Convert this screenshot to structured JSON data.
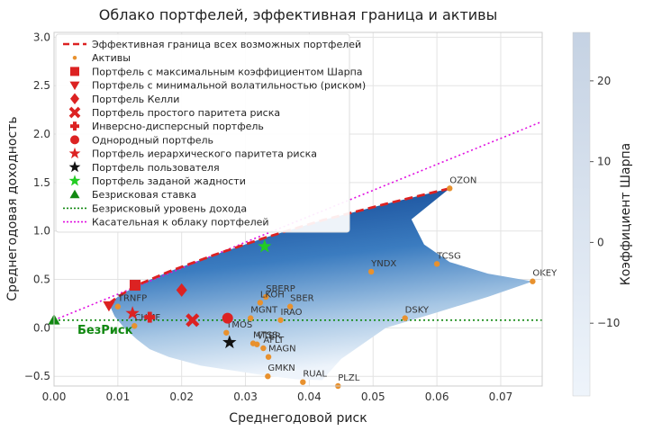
{
  "chart_data": {
    "type": "scatter",
    "title": "Облако портфелей, эффективная граница и активы",
    "xlabel": "Среднегодовой риск",
    "ylabel": "Среднегодовая доходность",
    "xlim": [
      0.0,
      0.0765
    ],
    "ylim": [
      -0.6,
      3.05
    ],
    "x_ticks": [
      0.0,
      0.01,
      0.02,
      0.03,
      0.04,
      0.05,
      0.06,
      0.07
    ],
    "y_ticks": [
      -0.5,
      0.0,
      0.5,
      1.0,
      1.5,
      2.0,
      2.5,
      3.0
    ],
    "x_tick_labels": [
      "0.00",
      "0.01",
      "0.02",
      "0.03",
      "0.04",
      "0.05",
      "0.06",
      "0.07"
    ],
    "y_tick_labels": [
      "−0.5",
      "0.0",
      "0.5",
      "1.0",
      "1.5",
      "2.0",
      "2.5",
      "3.0"
    ],
    "grid": true,
    "colorbar": {
      "label": "Коэффициент Шарпа",
      "ticks": [
        20,
        10,
        0,
        -10
      ],
      "tick_labels": [
        "20",
        "10",
        "0",
        "−10"
      ],
      "range": [
        -19,
        26
      ],
      "color_low": "#eef4fb",
      "color_high": "#c5d2e3"
    },
    "risk_free_rate": 0.08,
    "risk_free_label": "БезРиск",
    "assets": [
      {
        "name": "OZON",
        "x": 0.062,
        "y": 1.44
      },
      {
        "name": "OKEY",
        "x": 0.075,
        "y": 0.48
      },
      {
        "name": "TCSG",
        "x": 0.06,
        "y": 0.66
      },
      {
        "name": "YNDX",
        "x": 0.0497,
        "y": 0.58
      },
      {
        "name": "DSKY",
        "x": 0.055,
        "y": 0.1
      },
      {
        "name": "SBERP",
        "x": 0.0332,
        "y": 0.32
      },
      {
        "name": "LKOH",
        "x": 0.0323,
        "y": 0.26
      },
      {
        "name": "SBER",
        "x": 0.037,
        "y": 0.22
      },
      {
        "name": "MGNT",
        "x": 0.0308,
        "y": 0.1
      },
      {
        "name": "IRAO",
        "x": 0.0355,
        "y": 0.08
      },
      {
        "name": "TRNFP",
        "x": 0.01,
        "y": 0.22
      },
      {
        "name": "RUAL",
        "x": 0.039,
        "y": -0.56
      },
      {
        "name": "PLZL",
        "x": 0.0445,
        "y": -0.6
      },
      {
        "name": "GMKN",
        "x": 0.0335,
        "y": -0.5
      },
      {
        "name": "TMOS",
        "x": 0.027,
        "y": -0.05
      },
      {
        "name": "MTSS",
        "x": 0.0312,
        "y": -0.16
      },
      {
        "name": "VTBR",
        "x": 0.0318,
        "y": -0.17
      },
      {
        "name": "AFLT",
        "x": 0.0328,
        "y": -0.21
      },
      {
        "name": "MAGN",
        "x": 0.0336,
        "y": -0.3
      },
      {
        "name": "CHMF",
        "x": 0.0126,
        "y": 0.02
      }
    ],
    "efficient_frontier": {
      "x": [
        0.0086,
        0.01,
        0.013,
        0.018,
        0.025,
        0.033,
        0.042,
        0.052,
        0.062
      ],
      "y": [
        0.25,
        0.32,
        0.44,
        0.58,
        0.75,
        0.93,
        1.11,
        1.28,
        1.44
      ]
    },
    "tangent_line": {
      "x": [
        0.0,
        0.0765
      ],
      "y": [
        0.08,
        2.13
      ]
    },
    "cloud_boundary": {
      "x": [
        0.0086,
        0.01,
        0.013,
        0.018,
        0.025,
        0.033,
        0.042,
        0.052,
        0.062,
        0.056,
        0.058,
        0.062,
        0.068,
        0.075,
        0.068,
        0.06,
        0.052,
        0.045,
        0.042,
        0.038,
        0.033,
        0.028,
        0.023,
        0.018,
        0.015,
        0.013,
        0.011,
        0.0095
      ],
      "y": [
        0.25,
        0.32,
        0.44,
        0.58,
        0.75,
        0.93,
        1.11,
        1.28,
        1.44,
        1.12,
        0.86,
        0.68,
        0.56,
        0.48,
        0.32,
        0.16,
        0.0,
        -0.32,
        -0.54,
        -0.53,
        -0.49,
        -0.44,
        -0.39,
        -0.3,
        -0.22,
        -0.12,
        0.0,
        0.12
      ]
    },
    "special_portfolios": [
      {
        "name": "Портфель с максимальным коэффициентом Шарпа",
        "marker": "square",
        "color": "#dc2222",
        "x": 0.0127,
        "y": 0.44
      },
      {
        "name": "Портфель с минимальной волатильностью (риском)",
        "marker": "triangle-down",
        "color": "#dc2222",
        "x": 0.0086,
        "y": 0.23
      },
      {
        "name": "Портфель Келли",
        "marker": "diamond",
        "color": "#dc2222",
        "x": 0.02,
        "y": 0.39
      },
      {
        "name": "Портфель простого паритета риска",
        "marker": "x",
        "color": "#dc2222",
        "x": 0.0217,
        "y": 0.08
      },
      {
        "name": "Инверсно-дисперсный портфель",
        "marker": "plus",
        "color": "#dc2222",
        "x": 0.015,
        "y": 0.11
      },
      {
        "name": "Однородный портфель",
        "marker": "circle",
        "color": "#dc2222",
        "x": 0.0272,
        "y": 0.1
      },
      {
        "name": "Портфель иерархического паритета риска",
        "marker": "star",
        "color": "#dc2222",
        "x": 0.0123,
        "y": 0.15
      },
      {
        "name": "Портфель пользователя",
        "marker": "star",
        "color": "#111111",
        "x": 0.0275,
        "y": -0.15
      },
      {
        "name": "Портфель заданой жадности",
        "marker": "star",
        "color": "#22cc22",
        "x": 0.033,
        "y": 0.84
      },
      {
        "name": "Безрисковая ставка",
        "marker": "triangle-up",
        "color": "#118811",
        "x": 0.0,
        "y": 0.08
      }
    ],
    "legend": [
      {
        "label": "Эффективная граница всех возможных портфелей",
        "kind": "dashed-line",
        "color": "#dc2222"
      },
      {
        "label": "Активы",
        "kind": "dot",
        "color": "#e8912e"
      },
      {
        "label": "Портфель с максимальным коэффициентом Шарпа",
        "kind": "square",
        "color": "#dc2222"
      },
      {
        "label": "Портфель с минимальной волатильностью (риском)",
        "kind": "triangle-down",
        "color": "#dc2222"
      },
      {
        "label": "Портфель Келли",
        "kind": "diamond",
        "color": "#dc2222"
      },
      {
        "label": "Портфель простого паритета риска",
        "kind": "x",
        "color": "#dc2222"
      },
      {
        "label": "Инверсно-дисперсный портфель",
        "kind": "plus",
        "color": "#dc2222"
      },
      {
        "label": "Однородный портфель",
        "kind": "circle",
        "color": "#dc2222"
      },
      {
        "label": "Портфель иерархического паритета риска",
        "kind": "star",
        "color": "#dc2222"
      },
      {
        "label": "Портфель пользователя",
        "kind": "star",
        "color": "#111111"
      },
      {
        "label": "Портфель заданой жадности",
        "kind": "star",
        "color": "#22cc22"
      },
      {
        "label": "Безрисковая ставка",
        "kind": "triangle-up",
        "color": "#118811"
      },
      {
        "label": "Безрисковый уровень дохода",
        "kind": "dotted-line",
        "color": "#118811"
      },
      {
        "label": "Касательная к облаку портфелей",
        "kind": "dotted-line",
        "color": "#e010e0"
      }
    ],
    "colors": {
      "asset": "#e8912e",
      "frontier": "#dc2222",
      "tangent": "#e010e0",
      "riskfree": "#118811",
      "cloud_dark": "#0b3d8c",
      "cloud_mid": "#4f8fca",
      "cloud_light": "#e8f0f8"
    }
  }
}
